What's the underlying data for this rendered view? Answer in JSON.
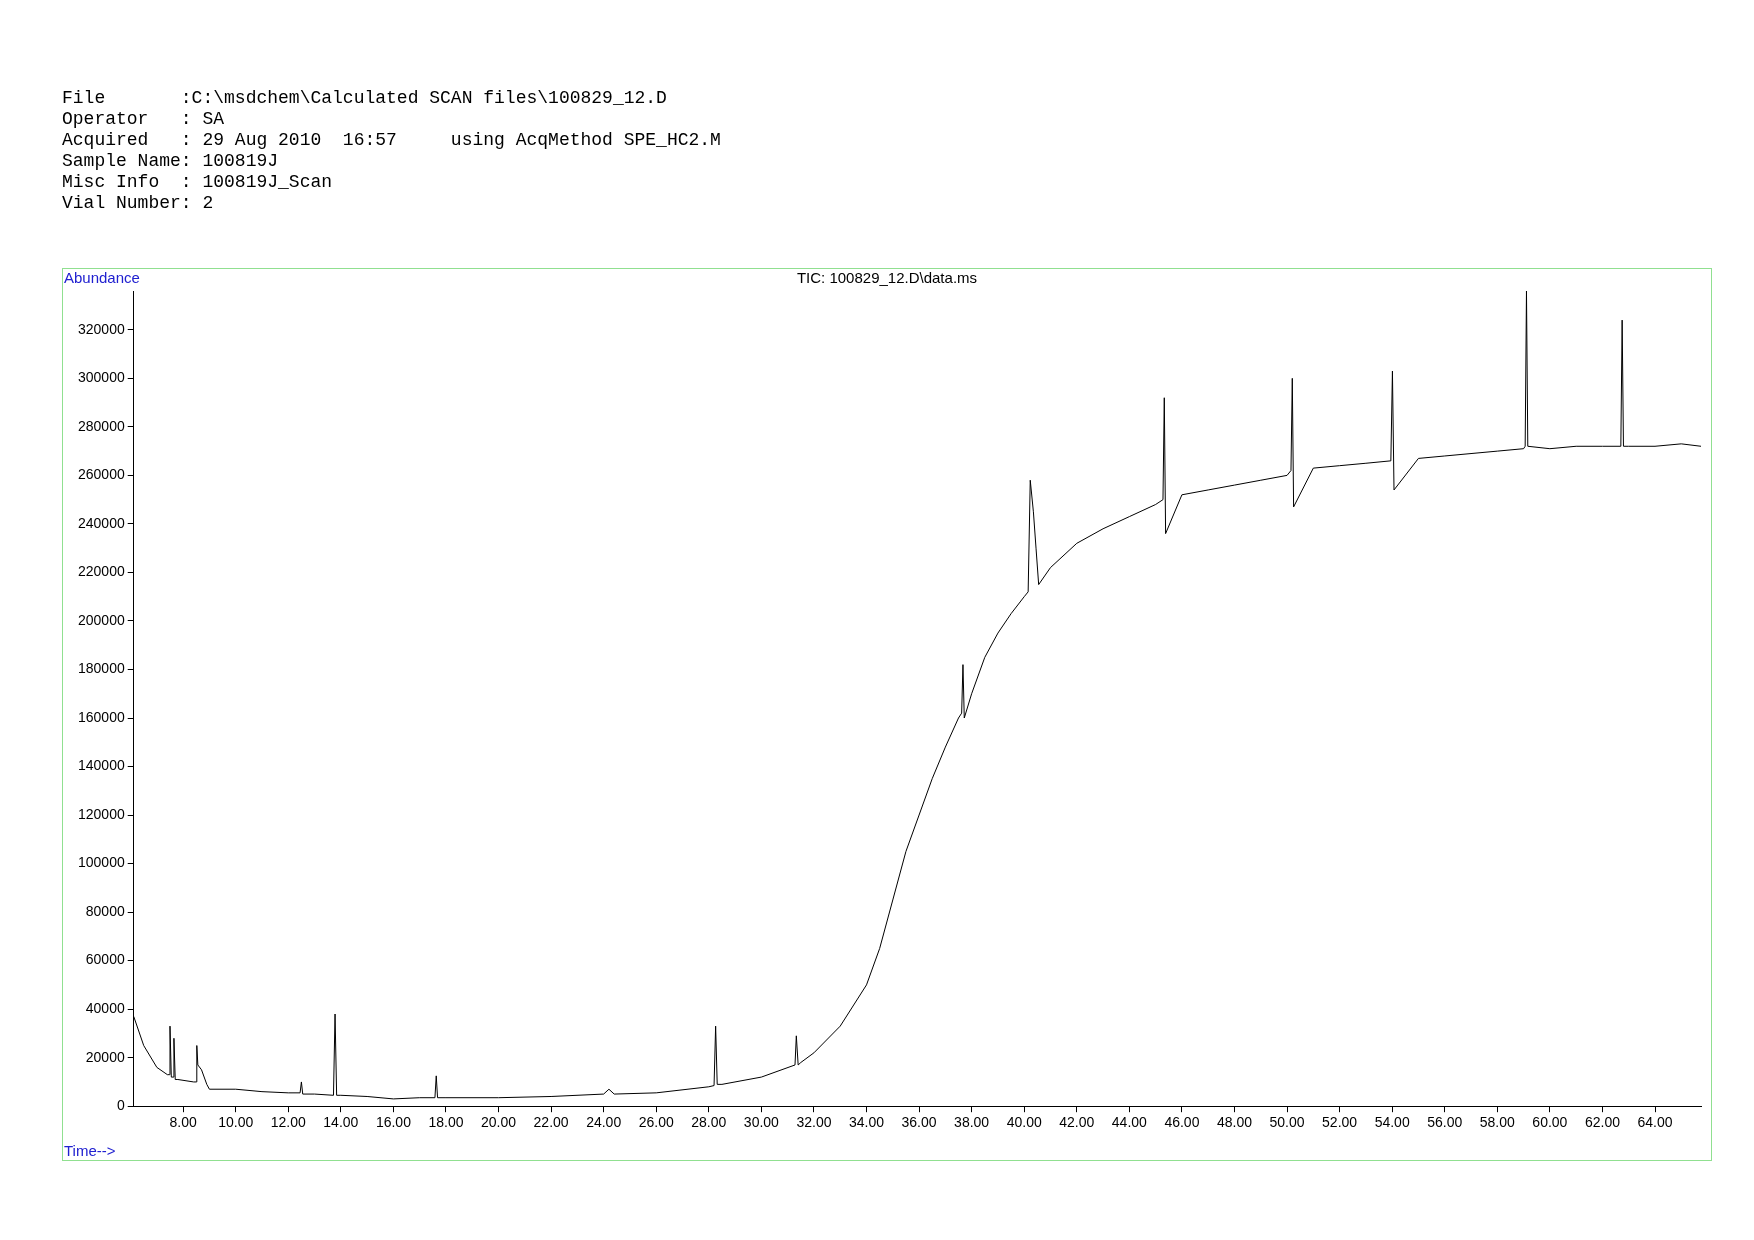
{
  "chart_data": {
    "type": "line",
    "title": "TIC: 100829_12.D\\data.ms",
    "xlabel": "Time-->",
    "ylabel": "Abundance",
    "annotations": [
      "File       :C:\\msdchem\\Calculated SCAN files\\100829_12.D",
      "Operator   : SA",
      "Acquired   : 29 Aug 2010  16:57     using AcqMethod SPE_HC2.M",
      "Sample Name: 100819J",
      "Misc Info  : 100819J_Scan",
      "Vial Number: 2"
    ],
    "series": [
      {
        "color": "#000000",
        "x": [
          6.12,
          6.5,
          7.0,
          7.4,
          7.48,
          7.5,
          7.55,
          7.62,
          7.65,
          7.7,
          7.8,
          8.4,
          8.5,
          8.52,
          8.56,
          8.7,
          8.9,
          9.0,
          10,
          11,
          12,
          12.45,
          12.5,
          12.55,
          13,
          13.72,
          13.78,
          13.84,
          14,
          15,
          16,
          17,
          17.58,
          17.63,
          17.68,
          18,
          20,
          22,
          24,
          24.2,
          24.4,
          26,
          28,
          28.2,
          28.26,
          28.32,
          28.5,
          30,
          31.28,
          31.33,
          31.4,
          31.5,
          32,
          33,
          34,
          34.5,
          35,
          35.5,
          36,
          36.5,
          37,
          37.5,
          37.62,
          37.67,
          37.72,
          38,
          38.5,
          39,
          39.5,
          40,
          40.15,
          40.23,
          40.35,
          40.45,
          40.55,
          41,
          42,
          43,
          44,
          45,
          45.28,
          45.33,
          45.38,
          46,
          47,
          48,
          49,
          50,
          50.15,
          50.2,
          50.25,
          51,
          52,
          53,
          53.95,
          54.01,
          54.07,
          55,
          56,
          57,
          58,
          59,
          59.06,
          59.11,
          59.16,
          60,
          61,
          62,
          62.7,
          62.75,
          62.8,
          63,
          64,
          65,
          65.75
        ],
        "values": [
          37000,
          25000,
          16000,
          13000,
          13000,
          33000,
          12000,
          12000,
          28000,
          11000,
          11000,
          10000,
          10000,
          25000,
          17000,
          15000,
          9000,
          7000,
          7000,
          6000,
          5500,
          5500,
          10000,
          5000,
          5000,
          4500,
          38000,
          4500,
          4500,
          4000,
          3000,
          3500,
          3500,
          12500,
          3500,
          3500,
          3500,
          4000,
          5000,
          7000,
          5000,
          5500,
          8000,
          8500,
          33000,
          9000,
          9000,
          12000,
          17000,
          29000,
          17000,
          18000,
          22000,
          33000,
          50000,
          65000,
          85000,
          105000,
          120000,
          135000,
          148000,
          160000,
          162000,
          182000,
          160000,
          170000,
          185000,
          195000,
          203000,
          210000,
          212000,
          258000,
          245000,
          230000,
          215000,
          222000,
          232000,
          238000,
          243000,
          248000,
          250000,
          292000,
          236000,
          252000,
          254000,
          256000,
          258000,
          260000,
          262000,
          300000,
          247000,
          263000,
          264000,
          265000,
          266000,
          303000,
          254000,
          267000,
          268000,
          269000,
          270000,
          271000,
          272000,
          336000,
          272000,
          271000,
          272000,
          272000,
          272000,
          324000,
          272000,
          272000,
          272000,
          273000,
          272000
        ]
      }
    ],
    "xlim": [
      6.12,
      65.75
    ],
    "ylim": [
      0,
      336000
    ],
    "xticks": [
      {
        "value": 8,
        "label": "8.00"
      },
      {
        "value": 10,
        "label": "10.00"
      },
      {
        "value": 12,
        "label": "12.00"
      },
      {
        "value": 14,
        "label": "14.00"
      },
      {
        "value": 16,
        "label": "16.00"
      },
      {
        "value": 18,
        "label": "18.00"
      },
      {
        "value": 20,
        "label": "20.00"
      },
      {
        "value": 22,
        "label": "22.00"
      },
      {
        "value": 24,
        "label": "24.00"
      },
      {
        "value": 26,
        "label": "26.00"
      },
      {
        "value": 28,
        "label": "28.00"
      },
      {
        "value": 30,
        "label": "30.00"
      },
      {
        "value": 32,
        "label": "32.00"
      },
      {
        "value": 34,
        "label": "34.00"
      },
      {
        "value": 36,
        "label": "36.00"
      },
      {
        "value": 38,
        "label": "38.00"
      },
      {
        "value": 40,
        "label": "40.00"
      },
      {
        "value": 42,
        "label": "42.00"
      },
      {
        "value": 44,
        "label": "44.00"
      },
      {
        "value": 46,
        "label": "46.00"
      },
      {
        "value": 48,
        "label": "48.00"
      },
      {
        "value": 50,
        "label": "50.00"
      },
      {
        "value": 52,
        "label": "52.00"
      },
      {
        "value": 54,
        "label": "54.00"
      },
      {
        "value": 56,
        "label": "56.00"
      },
      {
        "value": 58,
        "label": "58.00"
      },
      {
        "value": 60,
        "label": "60.00"
      },
      {
        "value": 62,
        "label": "62.00"
      },
      {
        "value": 64,
        "label": "64.00"
      }
    ],
    "yticks": [
      0,
      20000,
      40000,
      60000,
      80000,
      100000,
      120000,
      140000,
      160000,
      180000,
      200000,
      220000,
      240000,
      260000,
      280000,
      300000,
      320000
    ],
    "grid": false,
    "legend": false,
    "marker": "none",
    "line_style": "solid"
  }
}
